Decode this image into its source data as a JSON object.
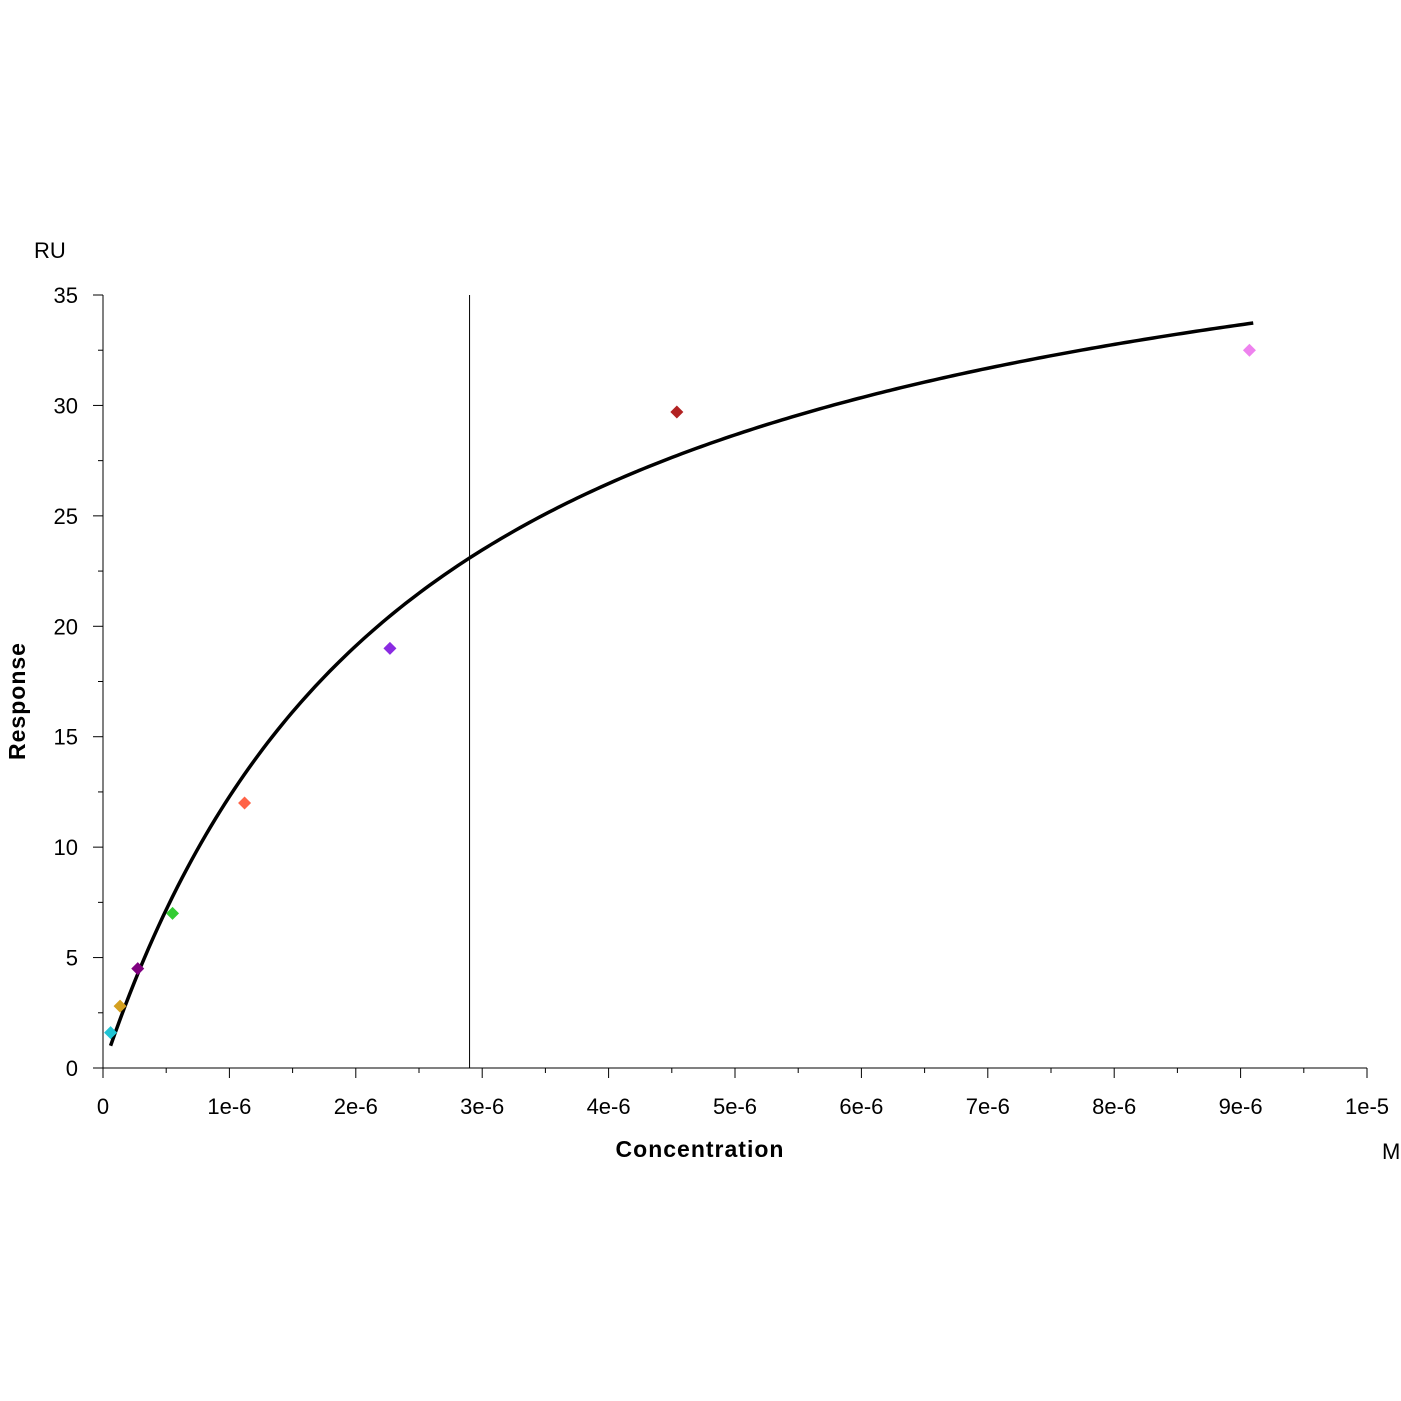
{
  "chart_data": {
    "type": "scatter",
    "title": "",
    "xlabel": "Concentration",
    "ylabel": "Response",
    "x_unit": "M",
    "y_unit": "RU",
    "xlim": [
      0,
      1e-05
    ],
    "ylim": [
      0,
      35
    ],
    "x_ticks": [
      {
        "value": 0,
        "label": "0"
      },
      {
        "value": 1e-06,
        "label": "1e-6"
      },
      {
        "value": 2e-06,
        "label": "2e-6"
      },
      {
        "value": 3e-06,
        "label": "3e-6"
      },
      {
        "value": 4e-06,
        "label": "4e-6"
      },
      {
        "value": 5e-06,
        "label": "5e-6"
      },
      {
        "value": 6e-06,
        "label": "6e-6"
      },
      {
        "value": 7e-06,
        "label": "7e-6"
      },
      {
        "value": 8e-06,
        "label": "8e-6"
      },
      {
        "value": 9e-06,
        "label": "9e-6"
      },
      {
        "value": 1e-05,
        "label": "1e-5"
      }
    ],
    "y_ticks": [
      {
        "value": 0,
        "label": "0"
      },
      {
        "value": 5,
        "label": "5"
      },
      {
        "value": 10,
        "label": "10"
      },
      {
        "value": 15,
        "label": "15"
      },
      {
        "value": 20,
        "label": "20"
      },
      {
        "value": 25,
        "label": "25"
      },
      {
        "value": 30,
        "label": "30"
      },
      {
        "value": 35,
        "label": "35"
      }
    ],
    "grid": false,
    "points": [
      {
        "x": 6e-08,
        "y": 1.6,
        "color": "#20c4d4"
      },
      {
        "x": 1.35e-07,
        "y": 2.8,
        "color": "#d4a020"
      },
      {
        "x": 2.75e-07,
        "y": 4.5,
        "color": "#800080"
      },
      {
        "x": 5.5e-07,
        "y": 7.0,
        "color": "#33cc33"
      },
      {
        "x": 1.12e-06,
        "y": 12.0,
        "color": "#ff6347"
      },
      {
        "x": 2.27e-06,
        "y": 19.0,
        "color": "#8a2be2"
      },
      {
        "x": 4.54e-06,
        "y": 29.7,
        "color": "#b22222"
      },
      {
        "x": 9.07e-06,
        "y": 32.5,
        "color": "#ee82ee"
      }
    ],
    "fit": {
      "model": "steady-state affinity",
      "Rmax": 43.0,
      "KD": 2.5e-06,
      "x_range": [
        6e-08,
        9.1e-06
      ],
      "color": "#000000"
    },
    "vertical_marker": {
      "x": 2.9e-06,
      "color": "#000000"
    }
  }
}
